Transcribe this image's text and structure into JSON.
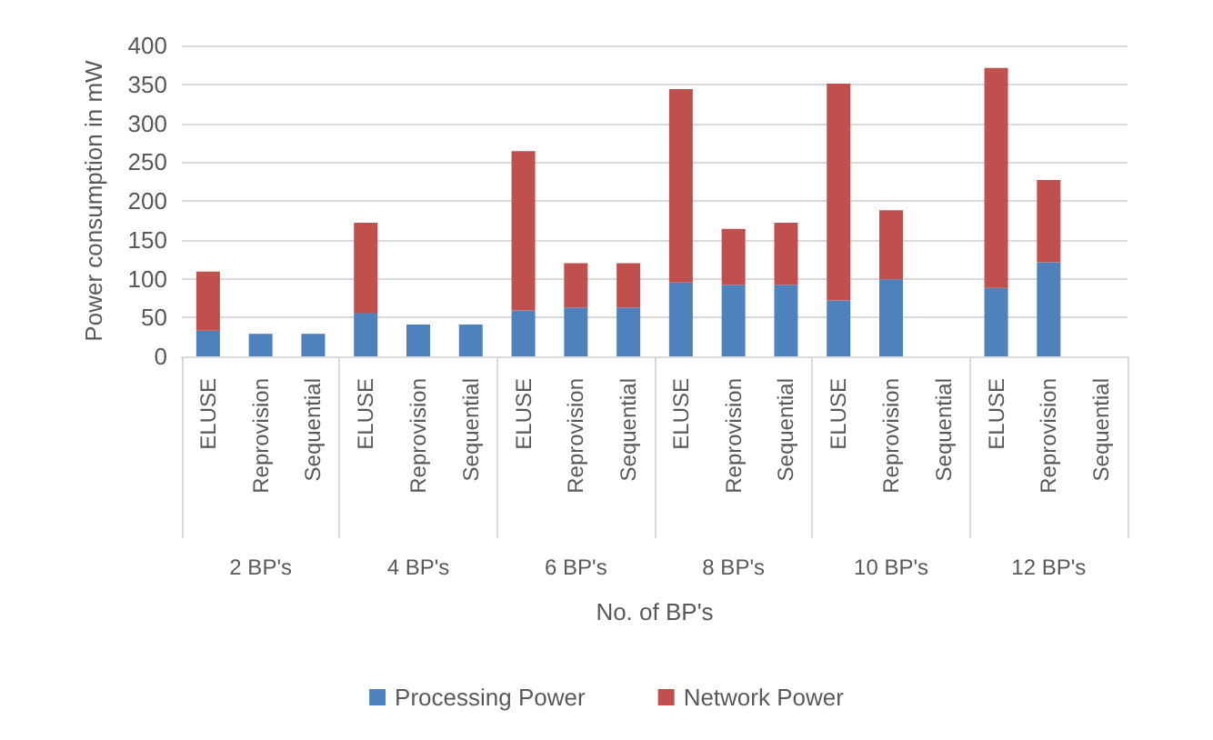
{
  "chart_data": {
    "type": "bar",
    "stacked": true,
    "xlabel": "No. of BP's",
    "ylabel": "Power consumption in mW",
    "categories": [
      "ELUSE",
      "Reprovision",
      "Sequential",
      "ELUSE",
      "Reprovision",
      "Sequential",
      "ELUSE",
      "Reprovision",
      "Sequential",
      "ELUSE",
      "Reprovision",
      "Sequential",
      "ELUSE",
      "Reprovision",
      "Sequential",
      "ELUSE",
      "Reprovision",
      "Sequential"
    ],
    "annotations": [
      "2 BP's",
      "4 BP's",
      "6 BP's",
      "8 BP's",
      "10 BP's",
      "12 BP's"
    ],
    "series": [
      {
        "name": "Processing Power",
        "color": "#4f81bd",
        "values": [
          33,
          29,
          29,
          56,
          41,
          41,
          59,
          63,
          63,
          95,
          92,
          92,
          72,
          99,
          null,
          88,
          121,
          null
        ]
      },
      {
        "name": "Network Power",
        "color": "#c0504d",
        "values": [
          76,
          null,
          null,
          116,
          null,
          null,
          205,
          57,
          57,
          249,
          72,
          80,
          279,
          89,
          null,
          283,
          106,
          null
        ]
      }
    ],
    "ylim": [
      0,
      400
    ],
    "yticks": [
      0,
      50,
      100,
      150,
      200,
      250,
      300,
      350,
      400
    ],
    "grid": "y",
    "legend": "bottom"
  }
}
